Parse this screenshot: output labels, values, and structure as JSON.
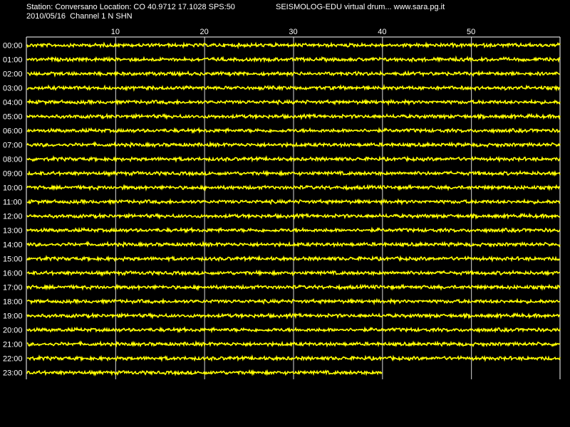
{
  "header": {
    "station_line": "Station: Conversano Location: CO 40.9712 17.1028 SPS:50",
    "brand_line": "SEISMOLOG-EDU virtual drum... www.sara.pg.it",
    "date_line": "2010/05/16  Channel 1 N SHN"
  },
  "colors": {
    "background": "#000000",
    "trace": "#ffff00",
    "grid": "#ffffff",
    "text": "#ffffff"
  },
  "chart_data": {
    "type": "line",
    "x_ticks": [
      10,
      20,
      30,
      40,
      50
    ],
    "xlim": [
      0,
      60
    ],
    "x_unit_hint": "minutes",
    "rows": [
      "00:00",
      "01:00",
      "02:00",
      "03:00",
      "04:00",
      "05:00",
      "06:00",
      "07:00",
      "08:00",
      "09:00",
      "10:00",
      "11:00",
      "12:00",
      "13:00",
      "14:00",
      "15:00",
      "16:00",
      "17:00",
      "18:00",
      "19:00",
      "20:00",
      "21:00",
      "22:00",
      "23:00"
    ],
    "row_end_minute": [
      60,
      60,
      60,
      60,
      60,
      60,
      60,
      60,
      60,
      60,
      60,
      60,
      60,
      60,
      60,
      60,
      60,
      60,
      60,
      60,
      60,
      60,
      60,
      40
    ],
    "grid": true
  }
}
